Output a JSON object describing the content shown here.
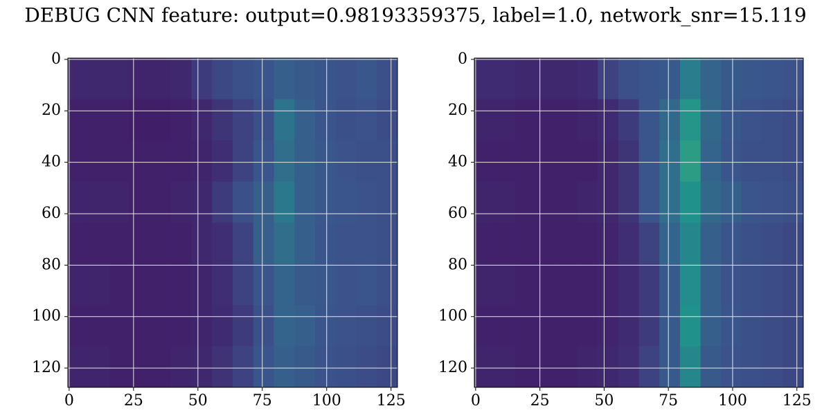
{
  "title": "DEBUG CNN feature: output=0.98193359375, label=1.0, network_snr=15.119",
  "chart_data": [
    {
      "type": "heatmap",
      "cmap": "viridis",
      "zlim": [
        0,
        1
      ],
      "grid": true,
      "x_edges": [
        -0.5,
        7.5,
        15.5,
        23.5,
        31.5,
        39.5,
        47.5,
        55.5,
        63.5,
        71.5,
        79.5,
        87.5,
        95.5,
        103.5,
        111.5,
        119.5,
        127.5
      ],
      "y_edges": [
        -0.5,
        15.5,
        31.5,
        47.5,
        63.5,
        79.5,
        95.5,
        111.5,
        127.5
      ],
      "xlim": [
        -0.5,
        127.5
      ],
      "ylim": [
        127.5,
        -0.5
      ],
      "xticks": [
        0,
        25,
        50,
        75,
        100,
        125
      ],
      "yticks": [
        0,
        20,
        40,
        60,
        80,
        100,
        120
      ],
      "z": [
        [
          0.12,
          0.12,
          0.12,
          0.11,
          0.11,
          0.12,
          0.18,
          0.22,
          0.24,
          0.26,
          0.3,
          0.28,
          0.26,
          0.25,
          0.27,
          0.24
        ],
        [
          0.1,
          0.1,
          0.1,
          0.09,
          0.09,
          0.1,
          0.12,
          0.16,
          0.2,
          0.24,
          0.38,
          0.3,
          0.26,
          0.24,
          0.25,
          0.23
        ],
        [
          0.1,
          0.1,
          0.1,
          0.1,
          0.1,
          0.1,
          0.11,
          0.14,
          0.2,
          0.26,
          0.36,
          0.3,
          0.27,
          0.25,
          0.24,
          0.24
        ],
        [
          0.11,
          0.11,
          0.11,
          0.1,
          0.1,
          0.11,
          0.12,
          0.18,
          0.24,
          0.3,
          0.4,
          0.3,
          0.27,
          0.26,
          0.25,
          0.24
        ],
        [
          0.1,
          0.1,
          0.1,
          0.1,
          0.1,
          0.1,
          0.12,
          0.14,
          0.2,
          0.3,
          0.36,
          0.3,
          0.26,
          0.25,
          0.25,
          0.24
        ],
        [
          0.11,
          0.11,
          0.1,
          0.1,
          0.1,
          0.1,
          0.11,
          0.14,
          0.2,
          0.26,
          0.32,
          0.28,
          0.27,
          0.25,
          0.26,
          0.24
        ],
        [
          0.1,
          0.1,
          0.1,
          0.1,
          0.1,
          0.1,
          0.11,
          0.13,
          0.18,
          0.24,
          0.32,
          0.3,
          0.26,
          0.25,
          0.24,
          0.23
        ],
        [
          0.11,
          0.11,
          0.1,
          0.1,
          0.1,
          0.11,
          0.12,
          0.15,
          0.2,
          0.26,
          0.3,
          0.28,
          0.25,
          0.24,
          0.23,
          0.22
        ]
      ]
    },
    {
      "type": "heatmap",
      "cmap": "viridis",
      "zlim": [
        0,
        1
      ],
      "grid": true,
      "x_edges": [
        -0.5,
        7.5,
        15.5,
        23.5,
        31.5,
        39.5,
        47.5,
        55.5,
        63.5,
        71.5,
        79.5,
        87.5,
        95.5,
        103.5,
        111.5,
        119.5,
        127.5
      ],
      "y_edges": [
        -0.5,
        15.5,
        31.5,
        47.5,
        63.5,
        79.5,
        95.5,
        111.5,
        127.5
      ],
      "xlim": [
        -0.5,
        127.5
      ],
      "ylim": [
        127.5,
        -0.5
      ],
      "xticks": [
        0,
        25,
        50,
        75,
        100,
        125
      ],
      "yticks": [
        0,
        20,
        40,
        60,
        80,
        100,
        120
      ],
      "z": [
        [
          0.13,
          0.13,
          0.12,
          0.12,
          0.12,
          0.13,
          0.2,
          0.24,
          0.26,
          0.28,
          0.42,
          0.32,
          0.28,
          0.27,
          0.26,
          0.25
        ],
        [
          0.11,
          0.11,
          0.1,
          0.1,
          0.1,
          0.11,
          0.13,
          0.18,
          0.26,
          0.34,
          0.52,
          0.34,
          0.27,
          0.25,
          0.24,
          0.23
        ],
        [
          0.1,
          0.1,
          0.1,
          0.1,
          0.1,
          0.1,
          0.12,
          0.16,
          0.26,
          0.36,
          0.55,
          0.32,
          0.26,
          0.24,
          0.24,
          0.23
        ],
        [
          0.11,
          0.11,
          0.1,
          0.1,
          0.1,
          0.11,
          0.12,
          0.16,
          0.26,
          0.36,
          0.5,
          0.34,
          0.3,
          0.26,
          0.25,
          0.24
        ],
        [
          0.1,
          0.1,
          0.1,
          0.1,
          0.1,
          0.1,
          0.11,
          0.14,
          0.2,
          0.32,
          0.46,
          0.3,
          0.26,
          0.24,
          0.23,
          0.22
        ],
        [
          0.11,
          0.11,
          0.1,
          0.1,
          0.1,
          0.1,
          0.11,
          0.13,
          0.18,
          0.28,
          0.48,
          0.3,
          0.25,
          0.24,
          0.23,
          0.22
        ],
        [
          0.1,
          0.1,
          0.1,
          0.1,
          0.1,
          0.1,
          0.11,
          0.13,
          0.18,
          0.28,
          0.5,
          0.3,
          0.26,
          0.24,
          0.23,
          0.22
        ],
        [
          0.11,
          0.11,
          0.1,
          0.1,
          0.1,
          0.11,
          0.12,
          0.14,
          0.2,
          0.28,
          0.46,
          0.28,
          0.25,
          0.24,
          0.23,
          0.22
        ]
      ]
    }
  ]
}
